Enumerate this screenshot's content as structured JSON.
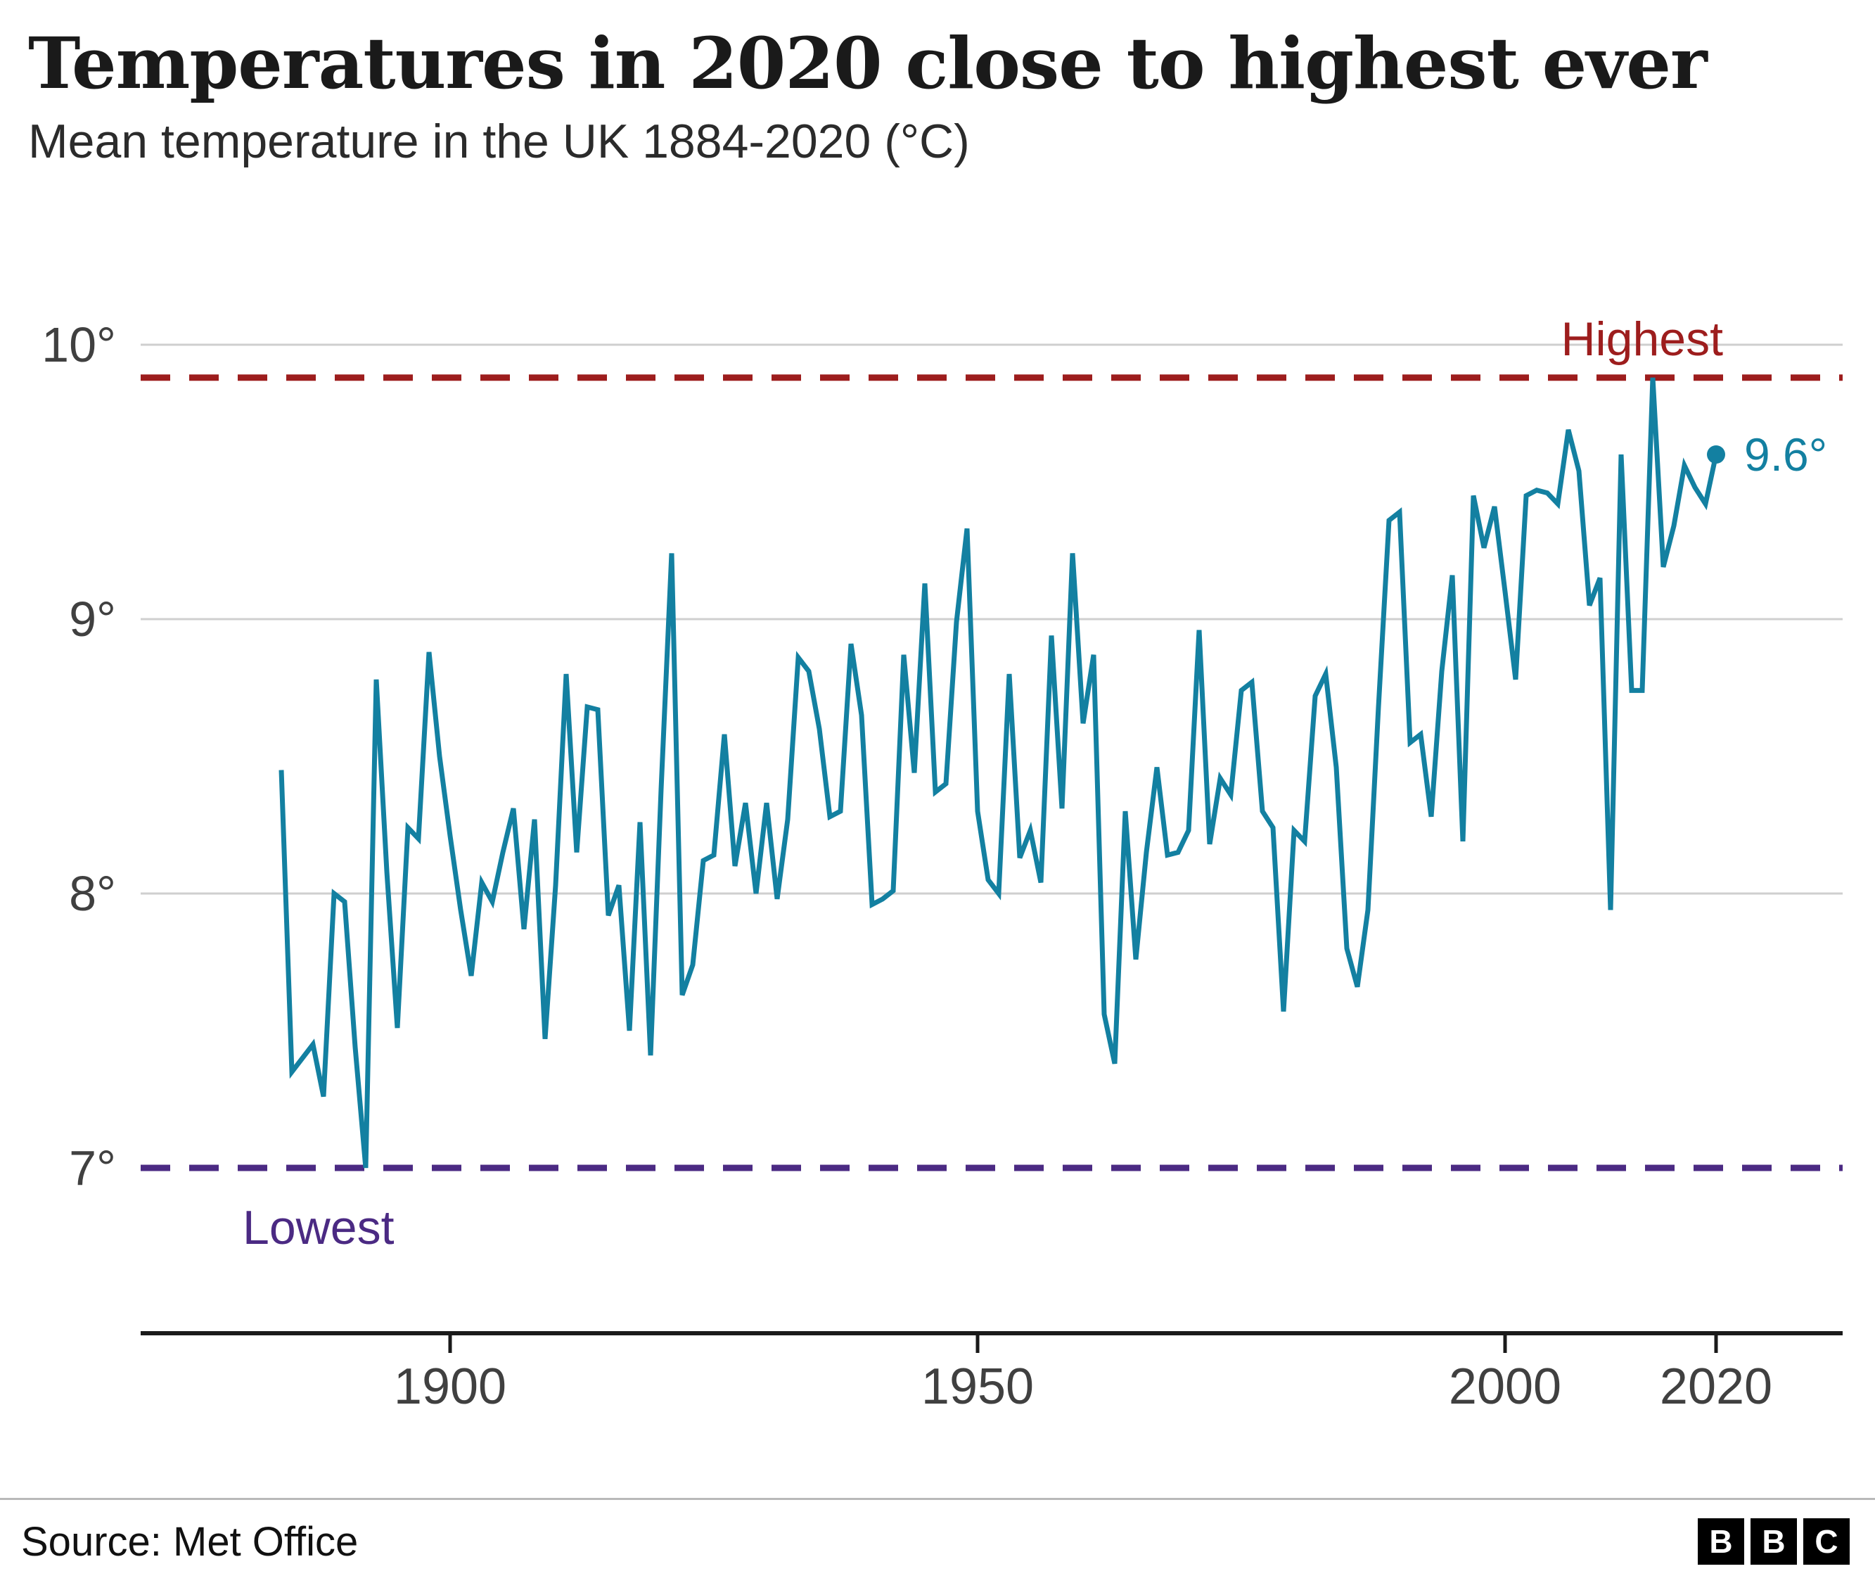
{
  "header": {
    "title": "Temperatures in 2020 close to highest ever",
    "subtitle": "Mean temperature in the UK 1884-2020 (°C)"
  },
  "chart_data": {
    "type": "line",
    "series_name": "UK mean annual temperature (°C)",
    "x_start": 1884,
    "x_end": 2020,
    "values": [
      8.45,
      7.35,
      7.4,
      7.45,
      7.26,
      8.0,
      7.97,
      7.44,
      7.0,
      8.78,
      8.08,
      7.51,
      8.24,
      8.2,
      8.88,
      8.5,
      8.21,
      7.94,
      7.7,
      8.04,
      7.97,
      8.15,
      8.31,
      7.87,
      8.27,
      7.47,
      8.03,
      8.8,
      8.15,
      8.68,
      8.67,
      7.92,
      8.03,
      7.5,
      8.26,
      7.41,
      8.38,
      9.24,
      7.63,
      7.74,
      8.12,
      8.14,
      8.58,
      8.1,
      8.33,
      8.0,
      8.33,
      7.98,
      8.27,
      8.86,
      8.81,
      8.6,
      8.28,
      8.3,
      8.91,
      8.65,
      7.96,
      7.98,
      8.01,
      8.87,
      8.44,
      9.13,
      8.37,
      8.4,
      8.99,
      9.33,
      8.3,
      8.05,
      8.0,
      8.8,
      8.13,
      8.23,
      8.04,
      8.94,
      8.31,
      9.24,
      8.62,
      8.87,
      7.56,
      7.38,
      8.3,
      7.76,
      8.15,
      8.46,
      8.14,
      8.15,
      8.23,
      8.96,
      8.18,
      8.42,
      8.36,
      8.74,
      8.77,
      8.3,
      8.24,
      7.57,
      8.23,
      8.19,
      8.72,
      8.8,
      8.46,
      7.8,
      7.66,
      7.94,
      8.68,
      9.36,
      9.39,
      8.55,
      8.58,
      8.28,
      8.81,
      9.16,
      8.19,
      9.45,
      9.26,
      9.41,
      9.1,
      8.78,
      9.45,
      9.47,
      9.46,
      9.42,
      9.69,
      9.54,
      9.05,
      9.15,
      7.94,
      9.6,
      8.74,
      8.74,
      9.88,
      9.19,
      9.34,
      9.56,
      9.48,
      9.42,
      9.6
    ],
    "ylim": [
      7,
      10
    ],
    "y_tick_values": [
      10,
      9,
      8,
      7
    ],
    "y_tick_labels": [
      "10°",
      "9°",
      "8°",
      "7°"
    ],
    "gridline_values": [
      10,
      9,
      8
    ],
    "x_ticks": [
      1900,
      1950,
      2000,
      2020
    ],
    "grid": "horizontal",
    "legend_position": "none",
    "line_color": "#1380A1",
    "annotations": {
      "highest": {
        "label": "Highest",
        "value": 9.88,
        "color": "#9d1d1d"
      },
      "lowest": {
        "label": "Lowest",
        "value": 7.0,
        "color": "#4b2a83"
      },
      "end_point": {
        "year": 2020,
        "value": 9.6,
        "label": "9.6°"
      }
    }
  },
  "footer": {
    "source": "Source: Met Office",
    "logo_letters": [
      "B",
      "B",
      "C"
    ]
  }
}
